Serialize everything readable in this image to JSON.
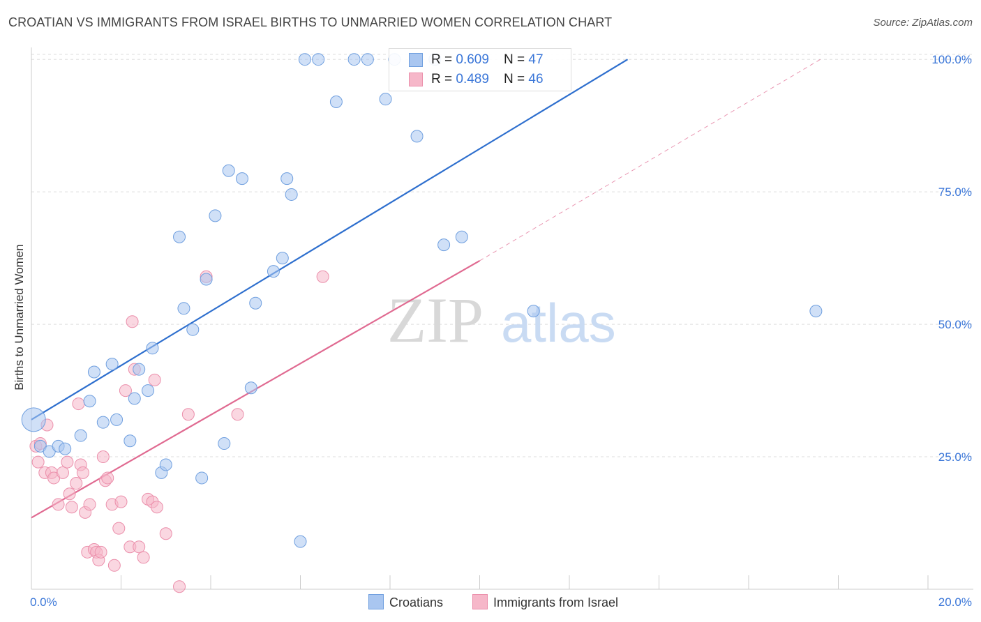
{
  "title": "CROATIAN VS IMMIGRANTS FROM ISRAEL BIRTHS TO UNMARRIED WOMEN CORRELATION CHART",
  "source": "Source: ZipAtlas.com",
  "watermark": {
    "zip": "ZIP",
    "atlas": "atlas"
  },
  "colors": {
    "blue_fill": "#a9c6f0",
    "blue_stroke": "#6f9fdf",
    "blue_line": "#2e6fce",
    "pink_fill": "#f6b7c9",
    "pink_stroke": "#eb8fab",
    "pink_line": "#e06a91",
    "tick_text": "#3a76d8",
    "grid": "#dddddd"
  },
  "legend": {
    "rows": [
      {
        "r_label": "R = ",
        "r_value": "0.609",
        "n_label": "N = ",
        "n_value": "47"
      },
      {
        "r_label": "R = ",
        "r_value": "0.489",
        "n_label": "N = ",
        "n_value": "46"
      }
    ]
  },
  "bottom_legend": {
    "series1": "Croatians",
    "series2": "Immigrants from Israel"
  },
  "chart_data": {
    "type": "scatter",
    "title": "CROATIAN VS IMMIGRANTS FROM ISRAEL BIRTHS TO UNMARRIED WOMEN CORRELATION CHART",
    "xlabel": "",
    "ylabel": "Births to Unmarried Women",
    "xlim": [
      0,
      20
    ],
    "ylim": [
      0,
      102
    ],
    "x_tick_labels": [
      "0.0%",
      "20.0%"
    ],
    "y_ticks": [
      25,
      50,
      75,
      100
    ],
    "y_tick_labels": [
      "25.0%",
      "50.0%",
      "75.0%",
      "100.0%"
    ],
    "grid": true,
    "legend_position": "top-center",
    "series": [
      {
        "name": "Croatians",
        "color": "#a9c6f0",
        "x": [
          0.05,
          0.2,
          0.4,
          0.6,
          0.75,
          1.1,
          1.3,
          1.4,
          1.6,
          1.8,
          1.9,
          2.2,
          2.3,
          2.4,
          2.6,
          2.7,
          2.9,
          3.0,
          3.3,
          3.4,
          3.6,
          3.8,
          3.9,
          4.1,
          4.3,
          4.4,
          4.7,
          4.9,
          5.0,
          5.4,
          5.6,
          5.7,
          5.8,
          6.0,
          6.1,
          6.4,
          6.8,
          7.2,
          7.5,
          7.9,
          8.1,
          8.6,
          9.0,
          9.6,
          9.2,
          11.2,
          17.5
        ],
        "y": [
          32,
          27,
          26,
          27,
          26.5,
          29,
          35.5,
          41,
          31.5,
          42.5,
          32,
          28,
          36,
          41.5,
          37.5,
          45.5,
          22,
          23.5,
          66.5,
          53,
          49,
          21,
          58.5,
          70.5,
          27.5,
          79,
          77.5,
          38,
          54,
          60,
          62.5,
          77.5,
          74.5,
          9,
          100,
          100,
          92,
          100,
          100,
          92.5,
          100,
          85.5,
          100,
          66.5,
          65,
          52.5,
          52.5
        ]
      },
      {
        "name": "Immigrants from Israel",
        "color": "#f6b7c9",
        "x": [
          0.1,
          0.15,
          0.2,
          0.3,
          0.35,
          0.45,
          0.5,
          0.6,
          0.7,
          0.8,
          0.85,
          0.9,
          1.0,
          1.05,
          1.1,
          1.15,
          1.2,
          1.25,
          1.3,
          1.4,
          1.45,
          1.5,
          1.55,
          1.6,
          1.65,
          1.7,
          1.8,
          1.85,
          1.95,
          2.0,
          2.1,
          2.2,
          2.25,
          2.3,
          2.4,
          2.5,
          2.6,
          2.7,
          2.75,
          2.8,
          3.0,
          3.3,
          3.5,
          3.9,
          4.6,
          6.5
        ],
        "y": [
          27,
          24,
          27.5,
          22,
          31,
          22,
          21,
          16,
          22,
          24,
          18,
          15.5,
          20,
          35,
          23.5,
          22,
          14.5,
          7,
          16,
          7.5,
          7,
          5.5,
          7,
          25,
          20.5,
          21,
          16,
          4.5,
          11.5,
          16.5,
          37.5,
          8,
          50.5,
          41.5,
          8,
          6,
          17,
          16.5,
          39.5,
          15.5,
          10.5,
          0.5,
          33,
          59,
          33,
          59
        ]
      }
    ],
    "trend_lines": [
      {
        "name": "Croatians",
        "x": [
          0,
          13.3
        ],
        "y": [
          32,
          100
        ]
      },
      {
        "name": "Immigrants from Israel",
        "x": [
          0,
          10
        ],
        "y": [
          13.5,
          62
        ],
        "dashed_extension_to": [
          17.6,
          100
        ]
      }
    ]
  }
}
